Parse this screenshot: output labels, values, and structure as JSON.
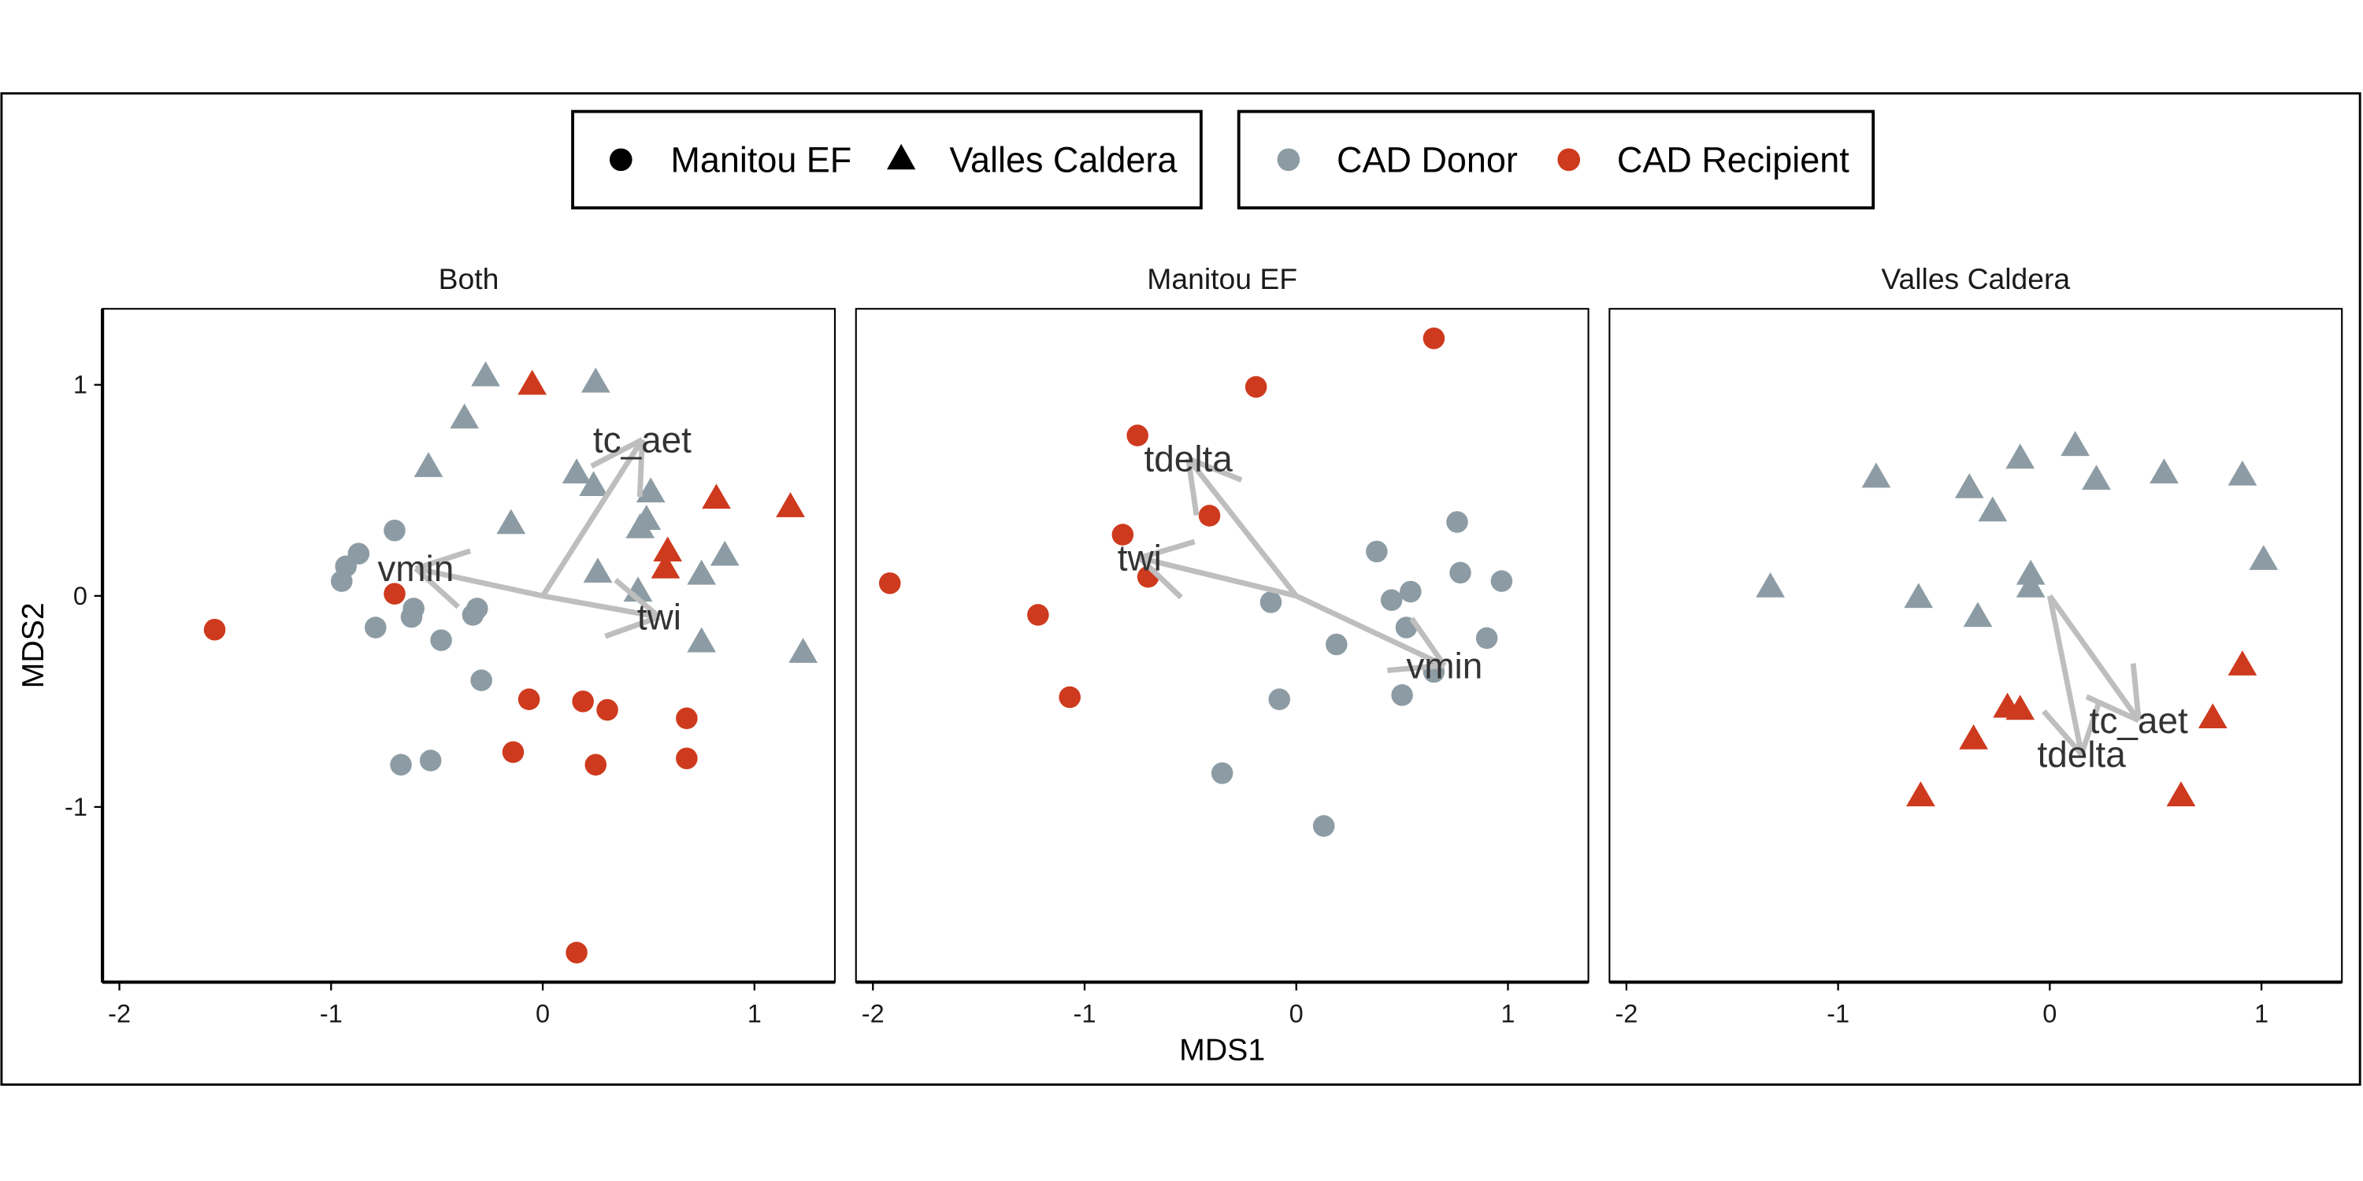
{
  "chart_data": {
    "type": "scatter",
    "xlabel": "MDS1",
    "ylabel": "MDS2",
    "xlim": [
      -2.08,
      1.38
    ],
    "ylim": [
      -1.83,
      1.36
    ],
    "x_ticks": [
      -2,
      -1,
      0,
      1
    ],
    "y_ticks": [
      1,
      0,
      -1
    ],
    "grid": false,
    "legend_position": "top",
    "legend": {
      "shape": [
        {
          "label": "Manitou EF",
          "marker": "circle"
        },
        {
          "label": "Valles Caldera",
          "marker": "triangle"
        }
      ],
      "color": [
        {
          "label": "CAD Donor",
          "color": "#8D9CA4"
        },
        {
          "label": "CAD Recipient",
          "color": "#CE3A1E"
        }
      ]
    },
    "vector_color": "#BEBEBE",
    "facets": [
      {
        "title": "Both",
        "groups": [
          {
            "shape": 1,
            "color": 0,
            "points": [
              [
                -0.27,
                1.05
              ],
              [
                0.25,
                1.02
              ],
              [
                -0.37,
                0.85
              ],
              [
                -0.54,
                0.62
              ],
              [
                -0.15,
                0.35
              ],
              [
                0.16,
                0.59
              ],
              [
                0.24,
                0.53
              ],
              [
                0.51,
                0.5
              ],
              [
                0.49,
                0.37
              ],
              [
                0.46,
                0.33
              ],
              [
                0.26,
                0.12
              ],
              [
                0.45,
                0.03
              ],
              [
                0.75,
                0.11
              ],
              [
                0.86,
                0.2
              ],
              [
                0.75,
                -0.21
              ],
              [
                1.23,
                -0.26
              ]
            ]
          },
          {
            "shape": 1,
            "color": 1,
            "points": [
              [
                -0.05,
                1.01
              ],
              [
                0.82,
                0.47
              ],
              [
                1.17,
                0.43
              ],
              [
                0.59,
                0.22
              ],
              [
                0.58,
                0.14
              ]
            ]
          },
          {
            "shape": 0,
            "color": 0,
            "points": [
              [
                -0.7,
                0.31
              ],
              [
                -0.87,
                0.2
              ],
              [
                -0.93,
                0.14
              ],
              [
                -0.95,
                0.07
              ],
              [
                -0.61,
                -0.06
              ],
              [
                -0.62,
                -0.1
              ],
              [
                -0.79,
                -0.15
              ],
              [
                -0.48,
                -0.21
              ],
              [
                -0.31,
                -0.06
              ],
              [
                -0.33,
                -0.09
              ],
              [
                -0.29,
                -0.4
              ],
              [
                -0.67,
                -0.8
              ],
              [
                -0.53,
                -0.78
              ]
            ]
          },
          {
            "shape": 0,
            "color": 1,
            "points": [
              [
                -1.55,
                -0.16
              ],
              [
                -0.7,
                0.01
              ],
              [
                -0.065,
                -0.49
              ],
              [
                0.19,
                -0.5
              ],
              [
                0.305,
                -0.54
              ],
              [
                0.68,
                -0.58
              ],
              [
                -0.14,
                -0.74
              ],
              [
                0.25,
                -0.8
              ],
              [
                0.68,
                -0.77
              ],
              [
                0.16,
                -1.69
              ]
            ]
          }
        ],
        "vectors": [
          {
            "label": "tc_aet",
            "x": 0.47,
            "y": 0.74
          },
          {
            "label": "vmin",
            "x": -0.6,
            "y": 0.13
          },
          {
            "label": "twi",
            "x": 0.55,
            "y": -0.1
          }
        ]
      },
      {
        "title": "Manitou EF",
        "groups": [
          {
            "shape": 0,
            "color": 0,
            "points": [
              [
                0.38,
                0.21
              ],
              [
                0.76,
                0.35
              ],
              [
                -0.12,
                -0.03
              ],
              [
                0.45,
                -0.02
              ],
              [
                0.54,
                0.02
              ],
              [
                0.775,
                0.11
              ],
              [
                0.97,
                0.07
              ],
              [
                0.52,
                -0.15
              ],
              [
                0.9,
                -0.2
              ],
              [
                0.19,
                -0.23
              ],
              [
                0.65,
                -0.36
              ],
              [
                0.5,
                -0.47
              ],
              [
                -0.08,
                -0.49
              ],
              [
                -0.35,
                -0.84
              ],
              [
                0.13,
                -1.09
              ]
            ]
          },
          {
            "shape": 0,
            "color": 1,
            "points": [
              [
                0.65,
                1.22
              ],
              [
                -0.19,
                0.99
              ],
              [
                -0.75,
                0.76
              ],
              [
                -0.41,
                0.38
              ],
              [
                -0.82,
                0.29
              ],
              [
                -0.7,
                0.09
              ],
              [
                -1.92,
                0.06
              ],
              [
                -1.22,
                -0.09
              ],
              [
                -1.07,
                -0.48
              ]
            ]
          }
        ],
        "vectors": [
          {
            "label": "tdelta",
            "x": -0.51,
            "y": 0.65
          },
          {
            "label": "twi",
            "x": -0.74,
            "y": 0.18
          },
          {
            "label": "vmin",
            "x": 0.7,
            "y": -0.33
          }
        ]
      },
      {
        "title": "Valles Caldera",
        "groups": [
          {
            "shape": 1,
            "color": 0,
            "points": [
              [
                -1.32,
                0.05
              ],
              [
                -0.82,
                0.57
              ],
              [
                -0.38,
                0.52
              ],
              [
                -0.27,
                0.41
              ],
              [
                -0.14,
                0.66
              ],
              [
                0.12,
                0.72
              ],
              [
                0.22,
                0.56
              ],
              [
                0.54,
                0.59
              ],
              [
                0.91,
                0.58
              ],
              [
                1.01,
                0.18
              ],
              [
                -0.62,
                0.0
              ],
              [
                -0.34,
                -0.09
              ],
              [
                -0.09,
                0.11
              ],
              [
                -0.09,
                0.05
              ]
            ]
          },
          {
            "shape": 1,
            "color": 1,
            "points": [
              [
                0.91,
                -0.32
              ],
              [
                -0.2,
                -0.52
              ],
              [
                -0.14,
                -0.53
              ],
              [
                -0.36,
                -0.67
              ],
              [
                0.77,
                -0.57
              ],
              [
                -0.61,
                -0.94
              ],
              [
                0.62,
                -0.94
              ]
            ]
          }
        ],
        "vectors": [
          {
            "label": "tc_aet",
            "x": 0.42,
            "y": -0.59
          },
          {
            "label": "tdelta",
            "x": 0.15,
            "y": -0.75
          }
        ]
      }
    ]
  }
}
